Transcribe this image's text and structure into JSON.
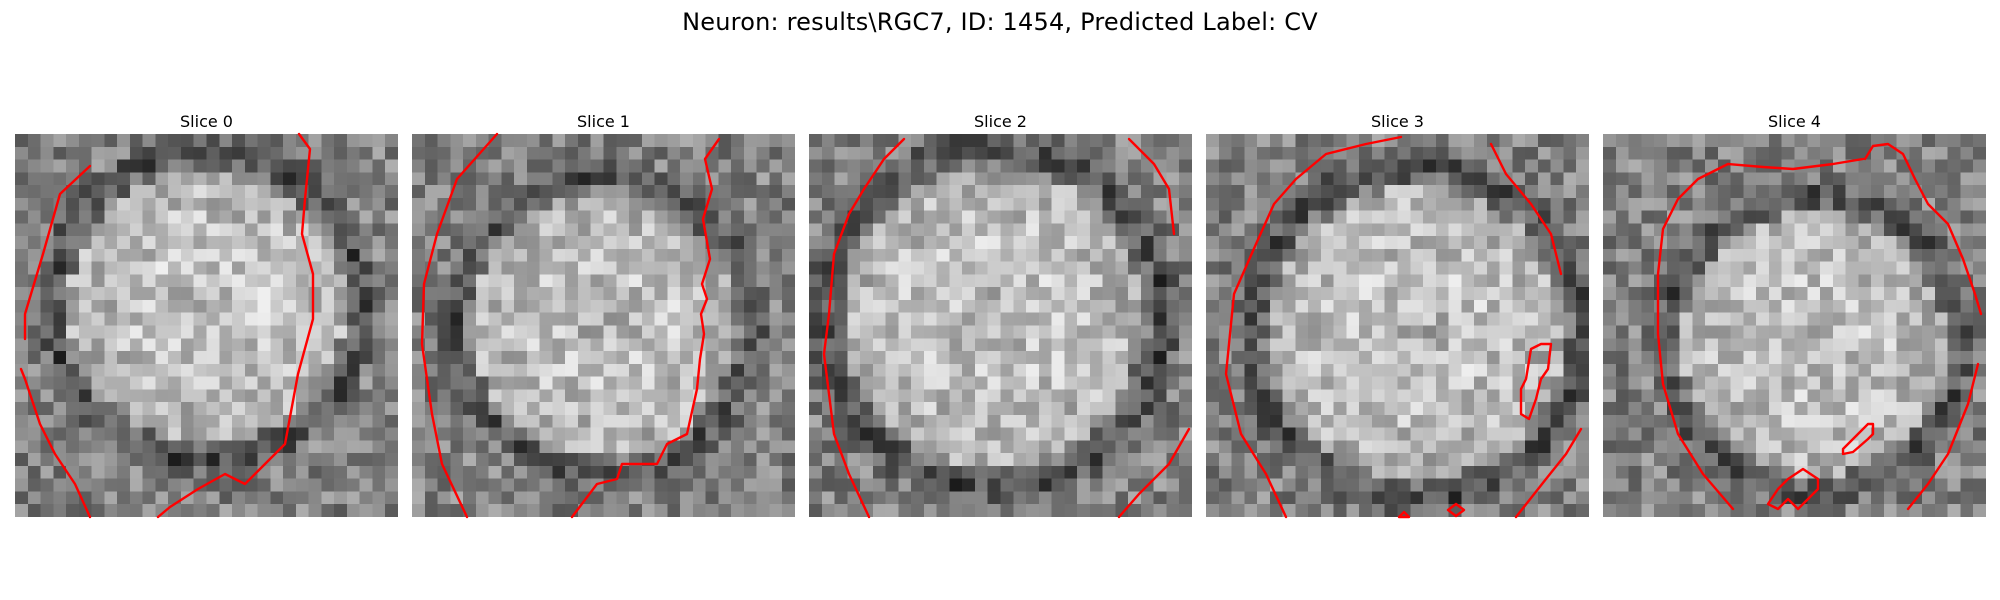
{
  "figure": {
    "title": "Neuron: results\\RGC7, ID: 1454, Predicted Label: CV"
  },
  "slices": [
    {
      "title": "Slice 0"
    },
    {
      "title": "Slice 1"
    },
    {
      "title": "Slice 2"
    },
    {
      "title": "Slice 3"
    },
    {
      "title": "Slice 4"
    }
  ],
  "colors": {
    "contour": "#ff0000",
    "colormap": "gray",
    "background": "#ffffff"
  }
}
